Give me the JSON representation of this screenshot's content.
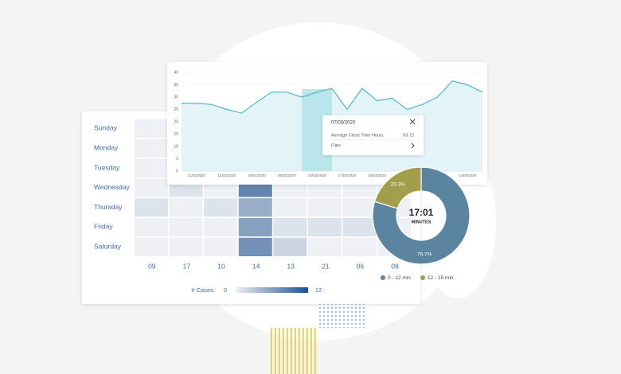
{
  "chart_data": [
    {
      "type": "line",
      "categories": [
        null,
        "11/02/2020",
        null,
        "12/02/2020",
        null,
        "25/02/2020",
        null,
        "05/03/2020",
        null,
        "10/03/2020",
        null,
        "17/03/2020",
        null,
        "24/03/2020",
        null,
        null,
        null,
        null,
        null,
        "14/04/2020",
        null
      ],
      "values": [
        27.5,
        27.5,
        27,
        25,
        23.5,
        28,
        32,
        32,
        30,
        32,
        33.5,
        25,
        33.5,
        28.5,
        29.5,
        25,
        27,
        30,
        36.5,
        35,
        32
      ],
      "color": "#4bb9c9",
      "area_color": "#e3f4f8",
      "ylim": [
        0,
        40
      ],
      "yticks": [
        0,
        5,
        10,
        15,
        20,
        25,
        30,
        35,
        40
      ],
      "grid": true,
      "highlight": 9,
      "tooltip": {
        "title": "07/03/2020",
        "label": "Average Close Time Hours",
        "value": 53.72,
        "action": "Filter"
      }
    },
    {
      "type": "heatmap",
      "rows": [
        "Sunday",
        "Monday",
        "Tuesday",
        "Wednesday",
        "Thursday",
        "Friday",
        "Saturday"
      ],
      "columns": [
        "09",
        "17",
        "10",
        "14",
        "13",
        "21",
        "06",
        "08"
      ],
      "values": [
        [
          0,
          0,
          0,
          0,
          0,
          0,
          0,
          0
        ],
        [
          0,
          0,
          0,
          0,
          0,
          0,
          0,
          0
        ],
        [
          0,
          0,
          0,
          0,
          0,
          0,
          0,
          0
        ],
        [
          0,
          1,
          0,
          8,
          0,
          0,
          0,
          0
        ],
        [
          1,
          0,
          1,
          5,
          0,
          0,
          0,
          0
        ],
        [
          0,
          0,
          0,
          6,
          1,
          1,
          1,
          0
        ],
        [
          0,
          0,
          0,
          7,
          2,
          0,
          0,
          0
        ]
      ],
      "vlim": [
        0,
        12
      ],
      "colors": [
        "#eef0f5",
        "#1d4f8a"
      ],
      "legend_title": "# Cases:"
    },
    {
      "type": "pie",
      "categories": [
        "0 - 12 min",
        "12 - 15 min"
      ],
      "values": [
        79.7,
        20.3
      ],
      "value_labels": [
        "79.7%",
        "20.3%"
      ],
      "colors": [
        "#5a84a0",
        "#a39e4c"
      ],
      "center_title": "17:01",
      "center_subtitle": "MINUTES"
    }
  ]
}
